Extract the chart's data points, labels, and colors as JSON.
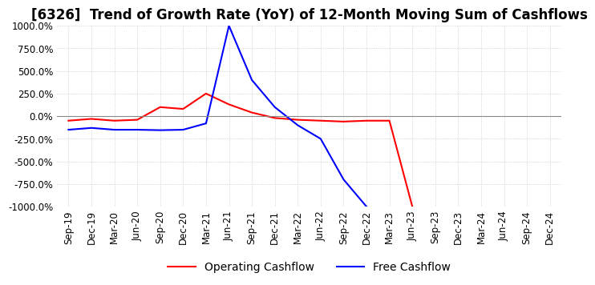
{
  "title": "[6326]  Trend of Growth Rate (YoY) of 12-Month Moving Sum of Cashflows",
  "ylim": [
    -1000,
    1000
  ],
  "yticks": [
    -1000,
    -750,
    -500,
    -250,
    0,
    250,
    500,
    750,
    1000
  ],
  "ytick_labels": [
    "-1000.0%",
    "-750.0%",
    "-500.0%",
    "-250.0%",
    "0.0%",
    "250.0%",
    "500.0%",
    "750.0%",
    "1000.0%"
  ],
  "x_labels": [
    "Sep-19",
    "Dec-19",
    "Mar-20",
    "Jun-20",
    "Sep-20",
    "Dec-20",
    "Mar-21",
    "Jun-21",
    "Sep-21",
    "Dec-21",
    "Mar-22",
    "Jun-22",
    "Sep-22",
    "Dec-22",
    "Mar-23",
    "Jun-23",
    "Sep-23",
    "Dec-23",
    "Mar-24",
    "Jun-24",
    "Sep-24",
    "Dec-24"
  ],
  "operating_cashflow_x": [
    0,
    1,
    2,
    3,
    4,
    5,
    6,
    7,
    8,
    9,
    10,
    11,
    12,
    13,
    14,
    15
  ],
  "operating_cashflow_y": [
    -50,
    -30,
    -50,
    -40,
    100,
    80,
    250,
    130,
    40,
    -20,
    -40,
    -50,
    -60,
    -50,
    -50,
    -1000
  ],
  "free_cashflow_x": [
    0,
    1,
    2,
    3,
    4,
    5,
    6,
    7,
    8,
    9,
    10,
    11,
    12,
    13
  ],
  "free_cashflow_y": [
    -150,
    -130,
    -150,
    -150,
    -155,
    -150,
    -80,
    1000,
    400,
    100,
    -100,
    -250,
    -700,
    -1000
  ],
  "op_color": "#ff0000",
  "free_color": "#0000ff",
  "background_color": "#ffffff",
  "grid_color": "#bbbbbb",
  "title_fontsize": 12,
  "tick_fontsize": 8.5,
  "legend_fontsize": 10
}
